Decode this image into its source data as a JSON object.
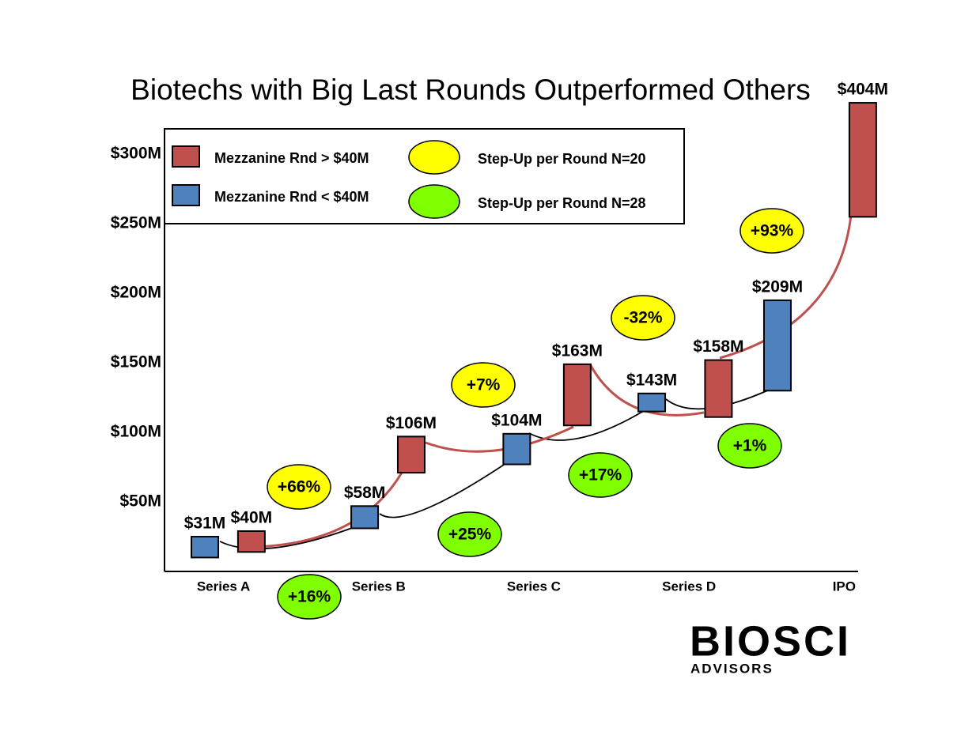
{
  "chart_data": {
    "type": "floating_box",
    "title": "Biotechs with Big Last Rounds Outperformed Others",
    "xlim": [
      -0.38,
      4.09
    ],
    "xticks": [
      {
        "value": 0,
        "label": "Series A"
      },
      {
        "value": 1,
        "label": "Series B"
      },
      {
        "value": 2,
        "label": "Series C"
      },
      {
        "value": 3,
        "label": "Series D"
      },
      {
        "value": 4,
        "label": "IPO"
      }
    ],
    "ylim": [
      0,
      345
    ],
    "yticks": [
      {
        "value": 50,
        "label": "$50M"
      },
      {
        "value": 100,
        "label": "$100M"
      },
      {
        "value": 150,
        "label": "$150M"
      },
      {
        "value": 200,
        "label": "$200M"
      },
      {
        "value": 250,
        "label": "$250M"
      },
      {
        "value": 300,
        "label": "$300M"
      }
    ],
    "series": [
      {
        "name": "Mezzanine Rnd > $40M",
        "color": "#c0504d",
        "x": [
          0.18,
          1.21,
          2.28,
          3.19,
          4.12
        ],
        "low": [
          14,
          71,
          105,
          111,
          255
        ],
        "high": [
          29,
          97,
          149,
          152,
          337
        ],
        "values": [
          40,
          106,
          163,
          158,
          404
        ],
        "value_labels": [
          "$40M",
          "$106M",
          "$163M",
          "$158M",
          "$404M"
        ]
      },
      {
        "name": "Mezzanine Rnd < $40M",
        "color": "#4f81bd",
        "x": [
          -0.12,
          0.91,
          1.89,
          2.76,
          3.57
        ],
        "low": [
          10,
          31,
          77,
          115,
          130
        ],
        "high": [
          25,
          47,
          99,
          128,
          195
        ],
        "values": [
          31,
          58,
          104,
          143,
          209
        ],
        "value_labels": [
          "$31M",
          "$58M",
          "$104M",
          "$143M",
          "$209M"
        ]
      }
    ],
    "step_ups": [
      {
        "name": "Step-Up per Round N=20",
        "color": "#ffff00",
        "values": [
          66,
          7,
          -32,
          93
        ],
        "value_labels": [
          "+66%",
          "+7%",
          "-32%",
          "+93%"
        ]
      },
      {
        "name": "Step-Up per Round N=28",
        "color": "#80ff00",
        "values": [
          16,
          25,
          17,
          1
        ],
        "value_labels": [
          "+16%",
          "+25%",
          "+17%",
          "+1%"
        ]
      }
    ]
  },
  "logo": {
    "name": "BIOSCI",
    "tagline": "ADVISORS"
  }
}
